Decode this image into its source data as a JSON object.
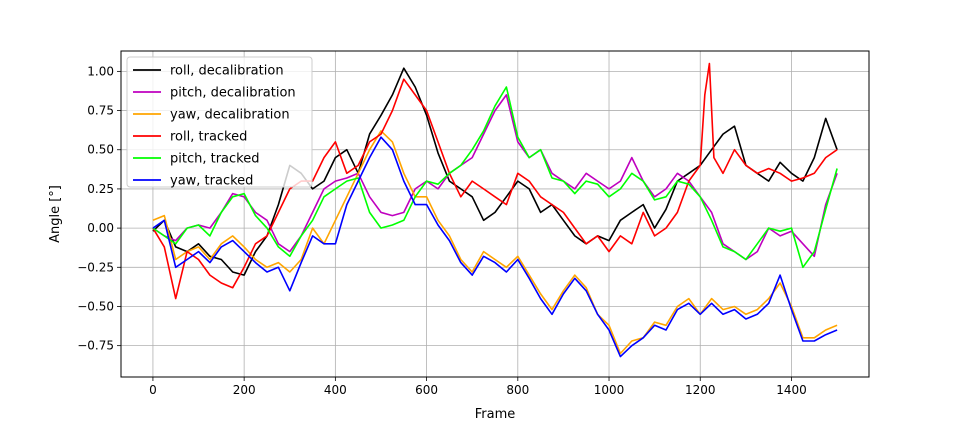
{
  "chart_data": {
    "type": "line",
    "title": "",
    "xlabel": "Frame",
    "ylabel": "Angle [°]",
    "xlim": [
      -70,
      1570
    ],
    "ylim": [
      -0.95,
      1.13
    ],
    "xticks": [
      0,
      200,
      400,
      600,
      800,
      1000,
      1200,
      1400
    ],
    "yticks": [
      -0.75,
      -0.5,
      -0.25,
      0.0,
      0.25,
      0.5,
      0.75,
      1.0
    ],
    "xtick_labels": [
      "0",
      "200",
      "400",
      "600",
      "800",
      "1000",
      "1200",
      "1400"
    ],
    "ytick_labels": [
      "−0.75",
      "−0.50",
      "−0.25",
      "0.00",
      "0.25",
      "0.50",
      "0.75",
      "1.00"
    ],
    "grid": true,
    "legend_position": "top-left",
    "series": [
      {
        "name": "roll, decalibration",
        "color": "#000000",
        "x": [
          0,
          25,
          50,
          75,
          100,
          125,
          150,
          175,
          200,
          225,
          250,
          275,
          300,
          325,
          350,
          375,
          400,
          425,
          450,
          475,
          500,
          525,
          550,
          575,
          600,
          625,
          650,
          675,
          700,
          725,
          750,
          775,
          800,
          825,
          850,
          875,
          900,
          925,
          950,
          975,
          1000,
          1025,
          1050,
          1075,
          1100,
          1125,
          1150,
          1175,
          1200,
          1225,
          1250,
          1275,
          1300,
          1325,
          1350,
          1375,
          1400,
          1425,
          1450,
          1475,
          1500
        ],
        "y": [
          -0.02,
          0.05,
          -0.12,
          -0.15,
          -0.1,
          -0.18,
          -0.2,
          -0.28,
          -0.3,
          -0.15,
          -0.05,
          0.15,
          0.4,
          0.35,
          0.25,
          0.3,
          0.45,
          0.5,
          0.35,
          0.6,
          0.72,
          0.85,
          1.02,
          0.9,
          0.72,
          0.48,
          0.3,
          0.25,
          0.2,
          0.05,
          0.1,
          0.2,
          0.3,
          0.25,
          0.1,
          0.15,
          0.05,
          -0.05,
          -0.1,
          -0.05,
          -0.08,
          0.05,
          0.1,
          0.15,
          0.0,
          0.12,
          0.3,
          0.35,
          0.4,
          0.5,
          0.6,
          0.65,
          0.4,
          0.35,
          0.3,
          0.42,
          0.35,
          0.3,
          0.45,
          0.7,
          0.5
        ]
      },
      {
        "name": "pitch, decalibration",
        "color": "#bf00bf",
        "x": [
          0,
          25,
          50,
          75,
          100,
          125,
          150,
          175,
          200,
          225,
          250,
          275,
          300,
          325,
          350,
          375,
          400,
          425,
          450,
          475,
          500,
          525,
          550,
          575,
          600,
          625,
          650,
          675,
          700,
          725,
          750,
          775,
          800,
          825,
          850,
          875,
          900,
          925,
          950,
          975,
          1000,
          1025,
          1050,
          1075,
          1100,
          1125,
          1150,
          1175,
          1200,
          1225,
          1250,
          1275,
          1300,
          1325,
          1350,
          1375,
          1400,
          1425,
          1450,
          1475,
          1500
        ],
        "y": [
          0.0,
          -0.05,
          -0.08,
          0.0,
          0.02,
          0.0,
          0.1,
          0.22,
          0.2,
          0.1,
          0.05,
          -0.1,
          -0.15,
          -0.05,
          0.1,
          0.25,
          0.3,
          0.32,
          0.35,
          0.2,
          0.1,
          0.08,
          0.1,
          0.25,
          0.3,
          0.25,
          0.35,
          0.4,
          0.45,
          0.6,
          0.75,
          0.85,
          0.55,
          0.45,
          0.5,
          0.35,
          0.3,
          0.25,
          0.35,
          0.3,
          0.25,
          0.3,
          0.45,
          0.3,
          0.2,
          0.25,
          0.35,
          0.3,
          0.2,
          0.1,
          -0.1,
          -0.15,
          -0.2,
          -0.15,
          0.0,
          -0.05,
          -0.02,
          -0.1,
          -0.18,
          0.15,
          0.35
        ]
      },
      {
        "name": "yaw, decalibration",
        "color": "#ffa500",
        "x": [
          0,
          25,
          50,
          75,
          100,
          125,
          150,
          175,
          200,
          225,
          250,
          275,
          300,
          325,
          350,
          375,
          400,
          425,
          450,
          475,
          500,
          525,
          550,
          575,
          600,
          625,
          650,
          675,
          700,
          725,
          750,
          775,
          800,
          825,
          850,
          875,
          900,
          925,
          950,
          975,
          1000,
          1025,
          1050,
          1075,
          1100,
          1125,
          1150,
          1175,
          1200,
          1225,
          1250,
          1275,
          1300,
          1325,
          1350,
          1375,
          1400,
          1425,
          1450,
          1475,
          1500
        ],
        "y": [
          0.05,
          0.08,
          -0.2,
          -0.15,
          -0.12,
          -0.2,
          -0.1,
          -0.05,
          -0.12,
          -0.2,
          -0.25,
          -0.22,
          -0.28,
          -0.2,
          0.0,
          -0.1,
          0.05,
          0.2,
          0.35,
          0.5,
          0.62,
          0.55,
          0.35,
          0.2,
          0.2,
          0.05,
          -0.05,
          -0.2,
          -0.28,
          -0.15,
          -0.2,
          -0.25,
          -0.18,
          -0.3,
          -0.42,
          -0.52,
          -0.4,
          -0.3,
          -0.38,
          -0.55,
          -0.62,
          -0.8,
          -0.72,
          -0.7,
          -0.6,
          -0.62,
          -0.5,
          -0.45,
          -0.55,
          -0.45,
          -0.52,
          -0.5,
          -0.55,
          -0.52,
          -0.45,
          -0.35,
          -0.5,
          -0.7,
          -0.7,
          -0.65,
          -0.62
        ]
      },
      {
        "name": "roll, tracked",
        "color": "#ff0000",
        "x": [
          0,
          25,
          50,
          75,
          100,
          125,
          150,
          175,
          200,
          225,
          250,
          275,
          300,
          325,
          350,
          375,
          400,
          425,
          450,
          475,
          500,
          525,
          550,
          575,
          600,
          625,
          650,
          675,
          700,
          725,
          750,
          775,
          800,
          825,
          850,
          875,
          900,
          925,
          950,
          975,
          1000,
          1025,
          1050,
          1075,
          1100,
          1125,
          1150,
          1175,
          1200,
          1210,
          1220,
          1230,
          1250,
          1275,
          1300,
          1325,
          1350,
          1375,
          1400,
          1425,
          1450,
          1475,
          1500
        ],
        "y": [
          0.0,
          -0.12,
          -0.45,
          -0.15,
          -0.2,
          -0.3,
          -0.35,
          -0.38,
          -0.25,
          -0.1,
          -0.05,
          0.1,
          0.25,
          0.3,
          0.3,
          0.45,
          0.55,
          0.35,
          0.4,
          0.55,
          0.6,
          0.75,
          0.95,
          0.85,
          0.75,
          0.55,
          0.35,
          0.2,
          0.3,
          0.25,
          0.2,
          0.15,
          0.35,
          0.3,
          0.2,
          0.15,
          0.1,
          0.0,
          -0.1,
          -0.05,
          -0.15,
          -0.05,
          -0.1,
          0.1,
          -0.05,
          0.0,
          0.1,
          0.3,
          0.4,
          0.85,
          1.05,
          0.45,
          0.35,
          0.5,
          0.4,
          0.35,
          0.38,
          0.35,
          0.3,
          0.32,
          0.35,
          0.45,
          0.5
        ]
      },
      {
        "name": "pitch, tracked",
        "color": "#00ff00",
        "x": [
          0,
          25,
          50,
          75,
          100,
          125,
          150,
          175,
          200,
          225,
          250,
          275,
          300,
          325,
          350,
          375,
          400,
          425,
          450,
          475,
          500,
          525,
          550,
          575,
          600,
          625,
          650,
          675,
          700,
          725,
          750,
          775,
          800,
          825,
          850,
          875,
          900,
          925,
          950,
          975,
          1000,
          1025,
          1050,
          1075,
          1100,
          1125,
          1150,
          1175,
          1200,
          1225,
          1250,
          1275,
          1300,
          1325,
          1350,
          1375,
          1400,
          1425,
          1450,
          1475,
          1500
        ],
        "y": [
          0.0,
          -0.05,
          -0.1,
          0.0,
          0.02,
          -0.05,
          0.1,
          0.2,
          0.22,
          0.08,
          0.0,
          -0.12,
          -0.18,
          -0.05,
          0.05,
          0.2,
          0.25,
          0.3,
          0.32,
          0.1,
          0.0,
          0.02,
          0.05,
          0.2,
          0.3,
          0.28,
          0.35,
          0.4,
          0.5,
          0.62,
          0.78,
          0.9,
          0.58,
          0.45,
          0.5,
          0.32,
          0.3,
          0.22,
          0.3,
          0.28,
          0.2,
          0.25,
          0.35,
          0.3,
          0.18,
          0.2,
          0.3,
          0.28,
          0.2,
          0.05,
          -0.12,
          -0.15,
          -0.2,
          -0.1,
          0.0,
          -0.02,
          0.0,
          -0.25,
          -0.15,
          0.12,
          0.38
        ]
      },
      {
        "name": "yaw, tracked",
        "color": "#0000ff",
        "x": [
          0,
          25,
          50,
          75,
          100,
          125,
          150,
          175,
          200,
          225,
          250,
          275,
          300,
          325,
          350,
          375,
          400,
          425,
          450,
          475,
          500,
          525,
          550,
          575,
          600,
          625,
          650,
          675,
          700,
          725,
          750,
          775,
          800,
          825,
          850,
          875,
          900,
          925,
          950,
          975,
          1000,
          1025,
          1050,
          1075,
          1100,
          1125,
          1150,
          1175,
          1200,
          1225,
          1250,
          1275,
          1300,
          1325,
          1350,
          1375,
          1400,
          1425,
          1450,
          1475,
          1500
        ],
        "y": [
          0.0,
          0.05,
          -0.25,
          -0.2,
          -0.15,
          -0.22,
          -0.12,
          -0.08,
          -0.15,
          -0.22,
          -0.28,
          -0.25,
          -0.4,
          -0.22,
          -0.05,
          -0.1,
          -0.1,
          0.15,
          0.3,
          0.45,
          0.58,
          0.5,
          0.3,
          0.15,
          0.15,
          0.02,
          -0.08,
          -0.22,
          -0.3,
          -0.18,
          -0.22,
          -0.28,
          -0.2,
          -0.32,
          -0.45,
          -0.55,
          -0.42,
          -0.32,
          -0.4,
          -0.55,
          -0.65,
          -0.82,
          -0.75,
          -0.7,
          -0.62,
          -0.65,
          -0.52,
          -0.48,
          -0.55,
          -0.48,
          -0.55,
          -0.52,
          -0.58,
          -0.55,
          -0.48,
          -0.3,
          -0.52,
          -0.72,
          -0.72,
          -0.68,
          -0.65
        ]
      }
    ]
  }
}
